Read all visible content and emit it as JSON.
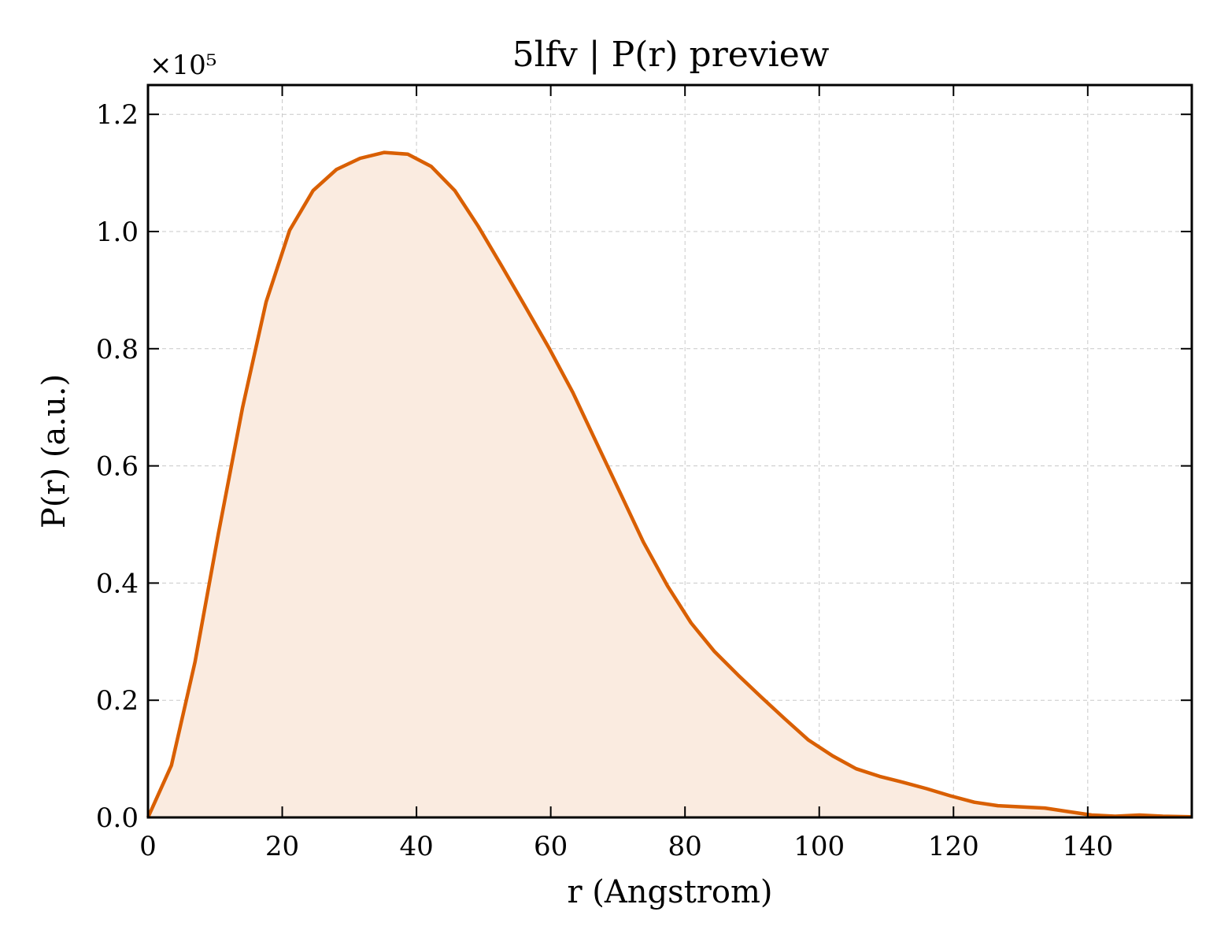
{
  "chart_data": {
    "type": "area",
    "title": "5lfv | P(r) preview",
    "xlabel": "r (Angstrom)",
    "ylabel": "P(r) (a.u.)",
    "y_multiplier_label": "×10⁵",
    "xlim": [
      0,
      155.5
    ],
    "ylim": [
      0,
      1.25
    ],
    "xticks": [
      0,
      20,
      40,
      60,
      80,
      100,
      120,
      140
    ],
    "yticks": [
      0.0,
      0.2,
      0.4,
      0.6,
      0.8,
      1.0,
      1.2
    ],
    "xtick_labels": [
      "0",
      "20",
      "40",
      "60",
      "80",
      "100",
      "120",
      "140"
    ],
    "ytick_labels": [
      "0.0",
      "0.2",
      "0.4",
      "0.6",
      "0.8",
      "1.0",
      "1.2"
    ],
    "grid": true,
    "line_color": "#d95f02",
    "fill_color": "#faebe0",
    "series": [
      {
        "x": [
          0,
          3.5,
          7.0,
          10.5,
          14.1,
          17.6,
          21.1,
          24.6,
          28.1,
          31.6,
          35.2,
          38.7,
          42.2,
          45.7,
          49.2,
          52.7,
          56.3,
          59.8,
          63.3,
          66.8,
          70.3,
          73.8,
          77.4,
          80.9,
          84.4,
          87.9,
          91.4,
          94.9,
          98.4,
          102.0,
          105.5,
          109.0,
          112.5,
          116.0,
          119.5,
          123.1,
          126.6,
          130.1,
          133.6,
          137.1,
          140.6,
          144.1,
          147.7,
          151.2,
          155.5
        ],
        "y": [
          0.0,
          0.089,
          0.265,
          0.485,
          0.7,
          0.88,
          1.002,
          1.07,
          1.106,
          1.125,
          1.135,
          1.132,
          1.111,
          1.07,
          1.009,
          0.941,
          0.87,
          0.8,
          0.725,
          0.64,
          0.555,
          0.47,
          0.395,
          0.332,
          0.283,
          0.243,
          0.205,
          0.168,
          0.132,
          0.105,
          0.083,
          0.07,
          0.06,
          0.049,
          0.037,
          0.026,
          0.02,
          0.018,
          0.016,
          0.01,
          0.004,
          0.002,
          0.004,
          0.002,
          0.001
        ]
      }
    ]
  }
}
